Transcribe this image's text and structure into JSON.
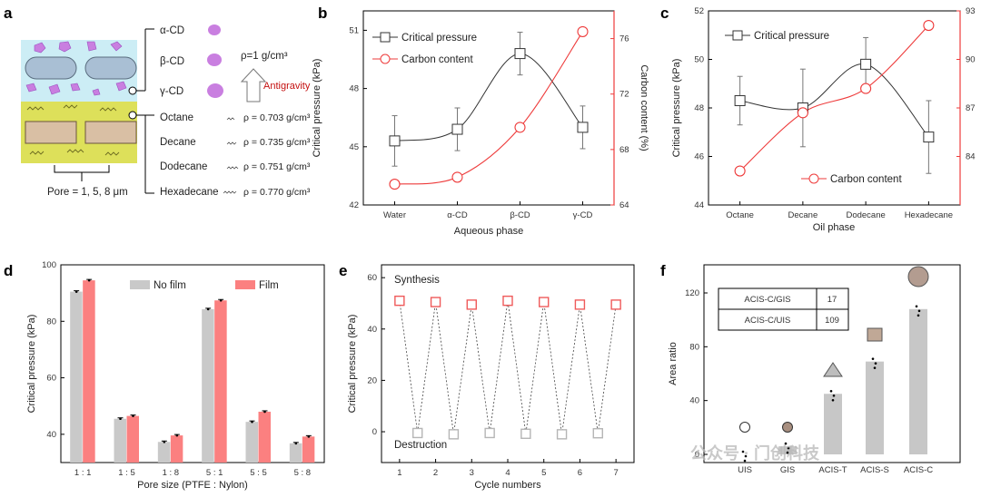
{
  "panel_labels": {
    "a": "a",
    "b": "b",
    "c": "c",
    "d": "d",
    "e": "e",
    "f": "f"
  },
  "schematic": {
    "aqueous_species": [
      {
        "name": "α-CD"
      },
      {
        "name": "β-CD"
      },
      {
        "name": "γ-CD"
      }
    ],
    "aqueous_density": "ρ=1 g/cm³",
    "antigravity_label": "Antigravity",
    "oils": [
      {
        "name": "Octane",
        "density": "ρ = 0.703 g/cm³"
      },
      {
        "name": "Decane",
        "density": "ρ = 0.735 g/cm³"
      },
      {
        "name": "Dodecane",
        "density": "ρ = 0.751 g/cm³"
      },
      {
        "name": "Hexadecane",
        "density": "ρ = 0.770 g/cm³"
      }
    ],
    "pore_label": "Pore = 1, 5, 8 μm",
    "colors": {
      "aqueous": "#ccedf5",
      "oil": "#dde05a",
      "particle": "#c97fe0",
      "pill": "#a9bfd4",
      "block": "#d9bfa4",
      "arrow_text": "#c41010"
    }
  },
  "chart_data": [
    {
      "id": "b",
      "type": "line",
      "categories": [
        "Water",
        "α-CD",
        "β-CD",
        "γ-CD"
      ],
      "xlabel": "Aqueous phase",
      "ylabel": "Critical pressure (kPa)",
      "ylim": [
        42,
        52
      ],
      "yticks": [
        "42",
        "45",
        "48",
        "51"
      ],
      "y2label": "Carbon content (%)",
      "y2lim": [
        64,
        78
      ],
      "y2ticks": [
        "64",
        "68",
        "72",
        "76"
      ],
      "series": [
        {
          "name": "Critical pressure",
          "axis": "left",
          "marker": "square",
          "color": "#333333",
          "values": [
            45.3,
            45.9,
            49.8,
            46.0
          ],
          "errors": [
            1.3,
            1.1,
            1.1,
            1.1
          ]
        },
        {
          "name": "Carbon content",
          "axis": "right",
          "marker": "circle",
          "color": "#ee3b3b",
          "values": [
            65.5,
            66.0,
            69.6,
            76.5
          ]
        }
      ]
    },
    {
      "id": "c",
      "type": "line",
      "categories": [
        "Octane",
        "Decane",
        "Dodecane",
        "Hexadecane"
      ],
      "xlabel": "Oil phase",
      "ylabel": "Critical pressure (kPa)",
      "ylim": [
        44,
        52
      ],
      "yticks": [
        "44",
        "46",
        "48",
        "50",
        "52"
      ],
      "y2label": "",
      "y2lim": [
        81,
        93
      ],
      "y2ticks": [
        "84",
        "87",
        "90",
        "93"
      ],
      "series": [
        {
          "name": "Critical pressure",
          "axis": "left",
          "marker": "square",
          "color": "#333333",
          "values": [
            48.3,
            48.0,
            49.8,
            46.8
          ],
          "errors": [
            1.0,
            1.6,
            1.1,
            1.5
          ]
        },
        {
          "name": "Carbon content",
          "axis": "right",
          "marker": "circle",
          "color": "#ee3b3b",
          "values": [
            83.1,
            86.7,
            88.2,
            92.1
          ]
        }
      ]
    },
    {
      "id": "d",
      "type": "bar",
      "categories": [
        "1 : 1",
        "1 : 5",
        "1 : 8",
        "5 : 1",
        "5 : 5",
        "5 : 8"
      ],
      "xlabel": "Pore size (PTFE : Nylon)",
      "ylabel": "Critical pressure (kPa)",
      "ylim": [
        30,
        100
      ],
      "yticks": [
        "40",
        "60",
        "80",
        "100"
      ],
      "series": [
        {
          "name": "No film",
          "color": "#c9c9c9",
          "values": [
            90.5,
            45.5,
            37.3,
            84.3,
            44.4,
            36.8
          ]
        },
        {
          "name": "Film",
          "color": "#fb8080",
          "values": [
            94.5,
            46.5,
            39.6,
            87.4,
            48.0,
            39.2
          ]
        }
      ]
    },
    {
      "id": "e",
      "type": "line",
      "x": [
        "1",
        "2",
        "3",
        "4",
        "5",
        "6",
        "7"
      ],
      "xlabel": "Cycle numbers",
      "ylabel": "Critical pressure (kPa)",
      "ylim": [
        -12,
        65
      ],
      "yticks": [
        "0",
        "20",
        "40",
        "60"
      ],
      "series": [
        {
          "name": "Synthesis",
          "color": "#ef5a5a",
          "x": [
            1,
            2,
            3,
            4,
            5,
            6,
            7
          ],
          "values": [
            51,
            50.5,
            49.5,
            51,
            50.5,
            49.5,
            49.5
          ]
        },
        {
          "name": "Destruction",
          "color": "#b5b5b5",
          "x": [
            1.5,
            2.5,
            3.5,
            4.5,
            5.5,
            6.5
          ],
          "values": [
            -0.5,
            -1,
            -0.5,
            -0.8,
            -1,
            -0.6
          ]
        }
      ],
      "annotations": [
        "Synthesis",
        "Destruction"
      ]
    },
    {
      "id": "f",
      "type": "bar",
      "categories": [
        "UIS",
        "GIS",
        "ACIS-T",
        "ACIS-S",
        "ACIS-C"
      ],
      "xlabel": "",
      "ylabel": "Area ratio",
      "ylim": [
        0,
        140
      ],
      "yticks": [
        "0",
        "40",
        "80",
        "120"
      ],
      "series": [
        {
          "name": "Area ratio",
          "color": "#c7c7c7",
          "values": [
            0,
            6,
            45,
            69,
            108
          ]
        }
      ],
      "table": [
        {
          "label": "ACIS-C/GIS",
          "value": "17"
        },
        {
          "label": "ACIS-C/UIS",
          "value": "109"
        }
      ]
    }
  ],
  "watermark": "公众号 · 门创科技"
}
